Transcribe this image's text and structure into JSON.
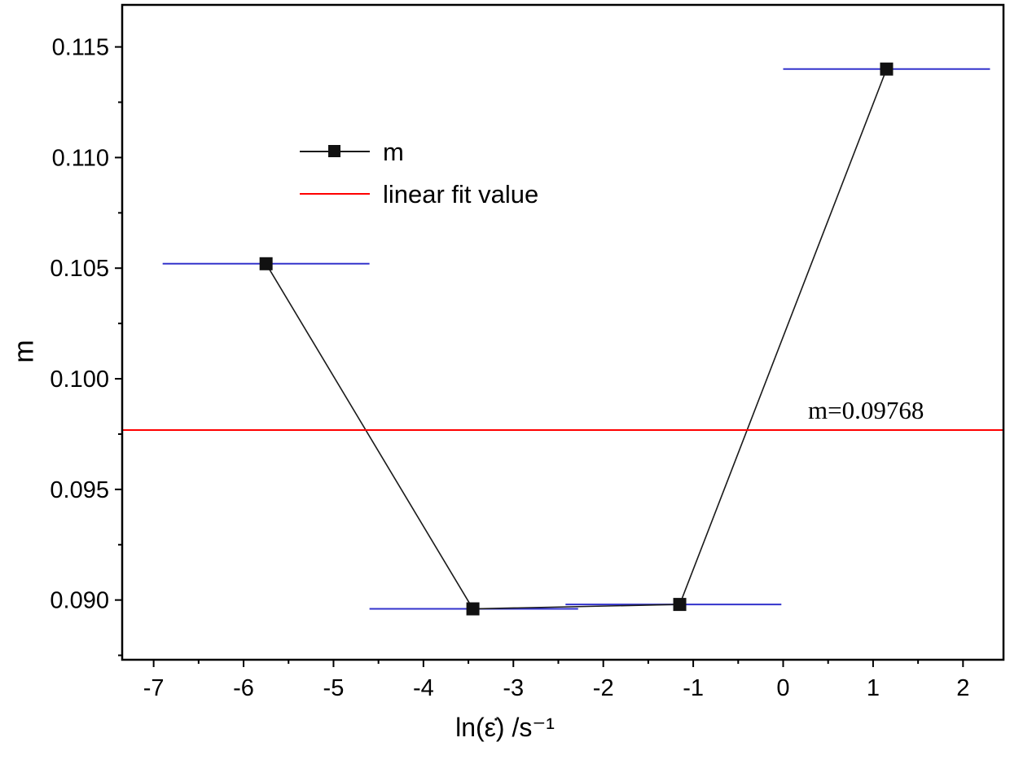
{
  "chart_data": {
    "type": "line",
    "title": "",
    "xlabel": "ln(ε̇) /s⁻¹",
    "ylabel": "m",
    "xlim": [
      -7.35,
      2.45
    ],
    "ylim": [
      0.0873,
      0.1169
    ],
    "x_ticks": [
      -7,
      -6,
      -5,
      -4,
      -3,
      -2,
      -1,
      0,
      1,
      2
    ],
    "x_tick_labels": [
      "-7",
      "-6",
      "-5",
      "-4",
      "-3",
      "-2",
      "-1",
      "0",
      "1",
      "2"
    ],
    "y_ticks": [
      0.09,
      0.095,
      0.1,
      0.105,
      0.11,
      0.115
    ],
    "y_tick_labels": [
      "0.090",
      "0.095",
      "0.100",
      "0.105",
      "0.110",
      "0.115"
    ],
    "grid": false,
    "legend_position": "upper-left-inside",
    "series": [
      {
        "name": "m",
        "type": "line+marker",
        "color": "#1a1a1a",
        "marker": "square",
        "marker_color": "#111111",
        "x": [
          -5.75,
          -3.45,
          -1.15,
          1.15
        ],
        "y": [
          0.1052,
          0.0896,
          0.0898,
          0.114
        ]
      },
      {
        "name": "linear fit value",
        "type": "hline",
        "color": "#ff0000",
        "y": 0.09768
      }
    ],
    "segment_lines": {
      "color": "#3333cc",
      "segments": [
        {
          "x1": -6.9,
          "x2": -4.6,
          "y": 0.1052
        },
        {
          "x1": -4.6,
          "x2": -2.28,
          "y": 0.0896
        },
        {
          "x1": -2.42,
          "x2": -0.02,
          "y": 0.0898
        },
        {
          "x1": 0.0,
          "x2": 2.3,
          "y": 0.114
        }
      ]
    },
    "annotation": {
      "text": "m=0.09768"
    },
    "legend": {
      "entries": [
        {
          "label": "m",
          "sample": "black-line-with-square-marker",
          "color": "#1a1a1a"
        },
        {
          "label": "linear fit value",
          "sample": "red-line",
          "color": "#ff0000"
        }
      ]
    }
  }
}
